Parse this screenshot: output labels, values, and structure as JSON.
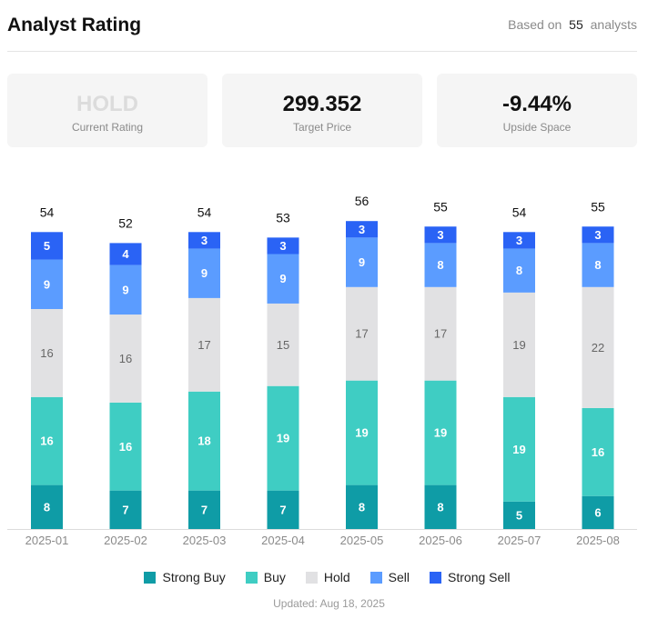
{
  "header": {
    "title": "Analyst Rating",
    "based_prefix": "Based on",
    "analyst_count": "55",
    "based_suffix": "analysts"
  },
  "cards": [
    {
      "value": "HOLD",
      "label": "Current Rating"
    },
    {
      "value": "299.352",
      "label": "Target Price"
    },
    {
      "value": "-9.44%",
      "label": "Upside Space"
    }
  ],
  "chart_data": {
    "type": "bar",
    "stacked": true,
    "categories": [
      "2025-01",
      "2025-02",
      "2025-03",
      "2025-04",
      "2025-05",
      "2025-06",
      "2025-07",
      "2025-08"
    ],
    "totals": [
      54,
      52,
      54,
      53,
      56,
      55,
      54,
      55
    ],
    "series": [
      {
        "name": "Strong Buy",
        "color": "#0f9ca6",
        "values": [
          8,
          7,
          7,
          7,
          8,
          8,
          5,
          6
        ]
      },
      {
        "name": "Buy",
        "color": "#3fcdc3",
        "values": [
          16,
          16,
          18,
          19,
          19,
          19,
          19,
          16
        ]
      },
      {
        "name": "Hold",
        "color": "#e1e1e3",
        "values": [
          16,
          16,
          17,
          15,
          17,
          17,
          19,
          22
        ]
      },
      {
        "name": "Sell",
        "color": "#5b9cff",
        "values": [
          9,
          9,
          9,
          9,
          9,
          8,
          8,
          8
        ]
      },
      {
        "name": "Strong Sell",
        "color": "#2a63f5",
        "values": [
          5,
          4,
          3,
          3,
          3,
          3,
          3,
          3
        ]
      }
    ],
    "ylim": [
      0,
      56
    ],
    "legend_position": "bottom"
  },
  "legend": [
    "Strong Buy",
    "Buy",
    "Hold",
    "Sell",
    "Strong Sell"
  ],
  "footer": {
    "updated": "Updated: Aug 18, 2025"
  }
}
